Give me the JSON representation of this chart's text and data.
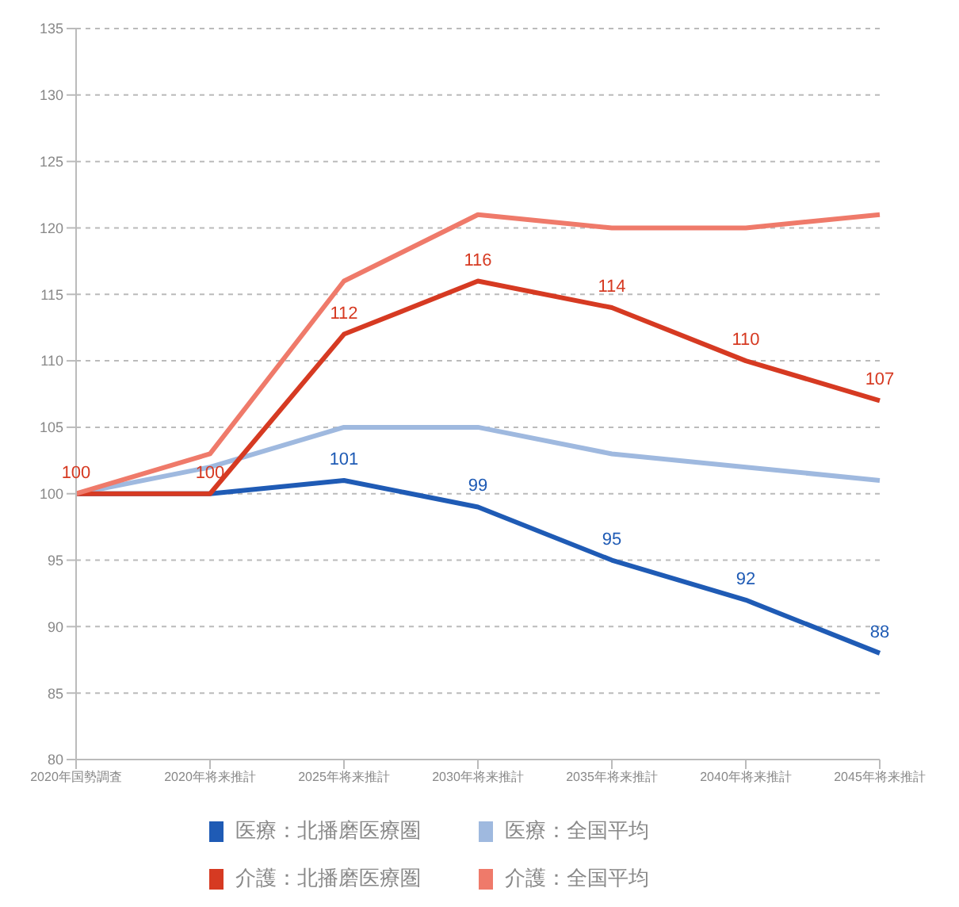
{
  "chart_data": {
    "type": "line",
    "categories": [
      "2020年国勢調査",
      "2020年将来推計",
      "2025年将来推計",
      "2030年将来推計",
      "2035年将来推計",
      "2040年将来推計",
      "2045年将来推計"
    ],
    "series": [
      {
        "name": "医療：北播磨医療圏",
        "color": "#1f5bb5",
        "values": [
          100,
          100,
          101,
          99,
          95,
          92,
          88
        ],
        "value_labels": [
          null,
          null,
          "101",
          "99",
          "95",
          "92",
          "88"
        ]
      },
      {
        "name": "医療：全国平均",
        "color": "#9fb9df",
        "values": [
          100,
          102,
          105,
          105,
          103,
          102,
          101
        ]
      },
      {
        "name": "介護：北播磨医療圏",
        "color": "#d63a22",
        "values": [
          100,
          100,
          112,
          116,
          114,
          110,
          107
        ],
        "value_labels": [
          "100",
          "100",
          "112",
          "116",
          "114",
          "110",
          "107"
        ]
      },
      {
        "name": "介護：全国平均",
        "color": "#ef7a6a",
        "values": [
          100,
          103,
          116,
          121,
          120,
          120,
          121
        ]
      }
    ],
    "ylim": [
      80,
      135
    ],
    "yticks": [
      80,
      85,
      90,
      95,
      100,
      105,
      110,
      115,
      120,
      125,
      130,
      135
    ],
    "grid": "y",
    "legend": "bottom",
    "marker": "none",
    "line_style": "solid"
  }
}
